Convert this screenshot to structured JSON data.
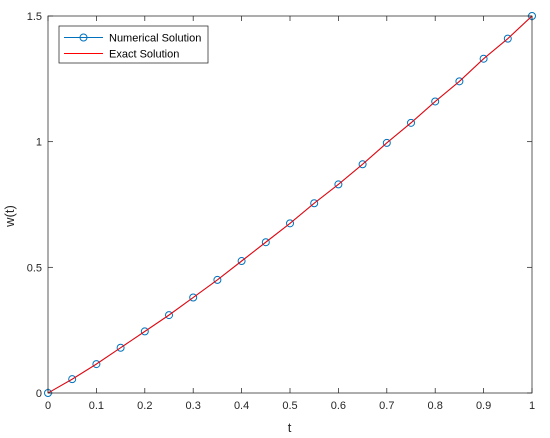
{
  "chart_data": {
    "type": "line",
    "title": "",
    "xlabel": "t",
    "ylabel": "w(t)",
    "xlim": [
      0,
      1
    ],
    "ylim": [
      0,
      1.5
    ],
    "xticks": [
      0,
      0.1,
      0.2,
      0.3,
      0.4,
      0.5,
      0.6,
      0.7,
      0.8,
      0.9,
      1
    ],
    "xtick_labels": [
      "0",
      "0.1",
      "0.2",
      "0.3",
      "0.4",
      "0.5",
      "0.6",
      "0.7",
      "0.8",
      "0.9",
      "1"
    ],
    "yticks": [
      0,
      0.5,
      1,
      1.5
    ],
    "ytick_labels": [
      "0",
      "0.5",
      "1",
      "1.5"
    ],
    "grid": false,
    "legend_position": "top-left",
    "series": [
      {
        "name": "Numerical Solution",
        "color": "#0072bd",
        "marker": "circle",
        "line": true,
        "x": [
          0,
          0.05,
          0.1,
          0.15,
          0.2,
          0.25,
          0.3,
          0.35,
          0.4,
          0.45,
          0.5,
          0.55,
          0.6,
          0.65,
          0.7,
          0.75,
          0.8,
          0.85,
          0.9,
          0.95,
          1
        ],
        "y": [
          0,
          0.055,
          0.115,
          0.18,
          0.245,
          0.31,
          0.38,
          0.45,
          0.525,
          0.6,
          0.675,
          0.755,
          0.83,
          0.91,
          0.995,
          1.075,
          1.16,
          1.24,
          1.33,
          1.41,
          1.5
        ]
      },
      {
        "name": "Exact Solution",
        "color": "#ff0000",
        "marker": "none",
        "line": true,
        "x": [
          0,
          0.05,
          0.1,
          0.15,
          0.2,
          0.25,
          0.3,
          0.35,
          0.4,
          0.45,
          0.5,
          0.55,
          0.6,
          0.65,
          0.7,
          0.75,
          0.8,
          0.85,
          0.9,
          0.95,
          1
        ],
        "y": [
          0,
          0.055,
          0.115,
          0.18,
          0.245,
          0.31,
          0.38,
          0.45,
          0.525,
          0.6,
          0.675,
          0.755,
          0.83,
          0.91,
          0.995,
          1.075,
          1.16,
          1.24,
          1.33,
          1.41,
          1.5
        ]
      }
    ]
  }
}
